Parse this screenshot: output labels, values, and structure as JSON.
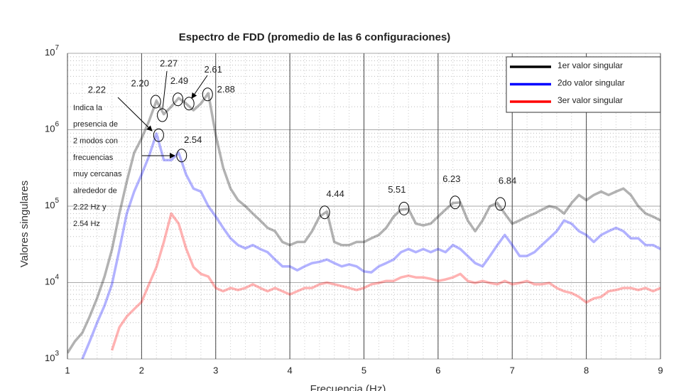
{
  "chart_data": {
    "type": "line",
    "title": "Espectro de FDD (promedio de las 6 configuraciones)",
    "xlabel": "Frecuencia (Hz)",
    "ylabel": "Valores singulares",
    "x": [
      1.0,
      1.1,
      1.2,
      1.3,
      1.4,
      1.5,
      1.6,
      1.7,
      1.8,
      1.9,
      2.0,
      2.1,
      2.2,
      2.3,
      2.4,
      2.5,
      2.6,
      2.7,
      2.8,
      2.9,
      3.0,
      3.1,
      3.2,
      3.3,
      3.4,
      3.5,
      3.6,
      3.7,
      3.8,
      3.9,
      4.0,
      4.1,
      4.2,
      4.3,
      4.4,
      4.5,
      4.6,
      4.7,
      4.8,
      4.9,
      5.0,
      5.1,
      5.2,
      5.3,
      5.4,
      5.5,
      5.6,
      5.7,
      5.8,
      5.9,
      6.0,
      6.1,
      6.2,
      6.3,
      6.4,
      6.5,
      6.6,
      6.7,
      6.8,
      6.9,
      7.0,
      7.1,
      7.2,
      7.3,
      7.4,
      7.5,
      7.6,
      7.7,
      7.8,
      7.9,
      8.0,
      8.1,
      8.2,
      8.3,
      8.4,
      8.5,
      8.6,
      8.7,
      8.8,
      8.9,
      9.0
    ],
    "series": [
      {
        "name": "1er valor singular",
        "color": "#000000",
        "values": [
          1200,
          1700,
          2200,
          3600,
          6300,
          12000,
          27000,
          80000,
          210000,
          500000,
          770000,
          1300000,
          2400000,
          1600000,
          2000000,
          2600000,
          2200000,
          1800000,
          2200000,
          3000000,
          850000,
          320000,
          170000,
          120000,
          100000,
          80000,
          65000,
          52000,
          47000,
          34000,
          31000,
          34000,
          34000,
          47000,
          73000,
          85000,
          34000,
          31000,
          31000,
          34000,
          34000,
          38000,
          42000,
          52000,
          73000,
          90000,
          92000,
          59000,
          56000,
          59000,
          73000,
          90000,
          110000,
          112000,
          65000,
          47000,
          65000,
          100000,
          110000,
          80000,
          59000,
          65000,
          73000,
          80000,
          90000,
          100000,
          95000,
          80000,
          110000,
          140000,
          120000,
          140000,
          155000,
          140000,
          155000,
          170000,
          140000,
          100000,
          80000,
          73000,
          65000
        ]
      },
      {
        "name": "2do valor singular",
        "color": "#0000ff",
        "values": [
          null,
          null,
          1000,
          1700,
          3000,
          5000,
          9500,
          27000,
          80000,
          155000,
          260000,
          450000,
          890000,
          400000,
          400000,
          500000,
          260000,
          170000,
          155000,
          100000,
          73000,
          52000,
          38000,
          31000,
          28000,
          31000,
          27500,
          25000,
          20000,
          16300,
          16300,
          14500,
          16300,
          18000,
          18700,
          20000,
          18000,
          16300,
          17300,
          16300,
          14000,
          13600,
          16300,
          18000,
          20000,
          25000,
          27500,
          25000,
          27500,
          25000,
          27500,
          25000,
          31000,
          27500,
          22300,
          18000,
          16300,
          22300,
          31000,
          42000,
          31000,
          22300,
          22300,
          25000,
          31000,
          38000,
          47000,
          65000,
          59000,
          47000,
          42000,
          34000,
          42000,
          47000,
          52000,
          47000,
          38000,
          38000,
          31000,
          31000,
          27500
        ]
      },
      {
        "name": "3er valor singular",
        "color": "#ff0000",
        "values": [
          null,
          null,
          null,
          null,
          null,
          null,
          1300,
          2600,
          3600,
          4500,
          5600,
          9500,
          16000,
          34000,
          80000,
          59000,
          28000,
          16000,
          13000,
          12000,
          8500,
          7700,
          8500,
          8000,
          8500,
          9500,
          8500,
          7700,
          8500,
          7700,
          7000,
          7700,
          8500,
          8500,
          9500,
          10000,
          9500,
          9000,
          8500,
          8000,
          8500,
          9500,
          9900,
          10500,
          10500,
          11700,
          12300,
          11700,
          11700,
          11200,
          10500,
          11000,
          11700,
          13000,
          10500,
          9900,
          10500,
          9900,
          9500,
          10500,
          9500,
          9900,
          10500,
          9500,
          9500,
          9900,
          8500,
          7700,
          7300,
          6500,
          5500,
          6200,
          6500,
          7700,
          8000,
          8500,
          8500,
          8000,
          8500,
          7700,
          8500
        ]
      }
    ],
    "xlim": [
      1,
      9
    ],
    "xticks": [
      1,
      2,
      3,
      4,
      5,
      6,
      7,
      8,
      9
    ],
    "ylim": [
      1000,
      10000000
    ],
    "yscale": "log",
    "yticks": [
      {
        "value": 1000,
        "label": "10",
        "exponent": "3"
      },
      {
        "value": 10000,
        "label": "10",
        "exponent": "4"
      },
      {
        "value": 100000,
        "label": "10",
        "exponent": "5"
      },
      {
        "value": 1000000,
        "label": "10",
        "exponent": "6"
      },
      {
        "value": 10000000,
        "label": "10",
        "exponent": "7"
      }
    ],
    "grid": true,
    "minor_grid": true,
    "legend": "upper right",
    "annotations": [
      {
        "text": "2.22",
        "x": 2.23,
        "y": 850000
      },
      {
        "text": "2.20",
        "x": 2.19,
        "y": 2330000
      },
      {
        "text": "2.27",
        "x": 2.28,
        "y": 1550000
      },
      {
        "text": "2.49",
        "x": 2.49,
        "y": 2500000
      },
      {
        "text": "2.61",
        "x": 2.64,
        "y": 2200000
      },
      {
        "text": "2.88",
        "x": 2.89,
        "y": 2900000
      },
      {
        "text": "2.54",
        "x": 2.54,
        "y": 460000
      },
      {
        "text": "4.44",
        "x": 4.47,
        "y": 83000
      },
      {
        "text": "5.51",
        "x": 5.54,
        "y": 93000
      },
      {
        "text": "6.23",
        "x": 6.23,
        "y": 112000
      },
      {
        "text": "6.84",
        "x": 6.84,
        "y": 107000
      }
    ],
    "note": [
      "Indica la",
      "presencia de",
      "2 modos con",
      "frecuencias",
      "muy cercanas",
      "alrededor de",
      "2.22 Hz y",
      "2.54 Hz"
    ]
  }
}
